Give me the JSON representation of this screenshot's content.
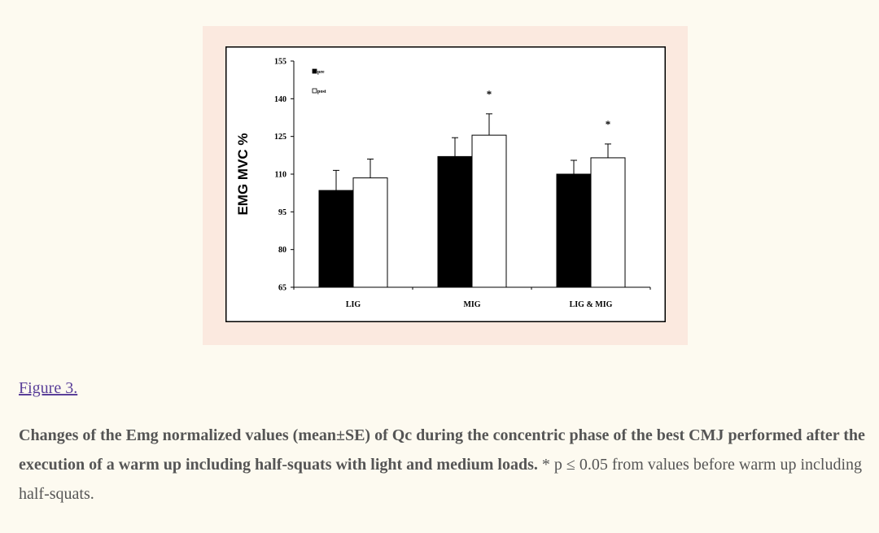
{
  "figure_link": "Figure 3.",
  "caption": {
    "bold": "Changes of the Emg normalized values (mean±SE) of Qc during the concentric phase of the best CMJ performed after the execution of a warm up including half-squats with light and medium loads.",
    "normal": " * p ≤ 0.05 from values before warm up including half-squats."
  },
  "chart_data": {
    "type": "bar",
    "title": "",
    "ylabel": "EMG MVC %",
    "xlabel": "",
    "ylim": [
      65,
      155
    ],
    "yticks": [
      65,
      80,
      95,
      110,
      125,
      140,
      155
    ],
    "categories": [
      "LIG",
      "MIG",
      "LIG & MIG"
    ],
    "series": [
      {
        "name": "pre",
        "color": "#000000",
        "values": [
          103.5,
          117,
          110
        ],
        "errors": [
          8,
          7.5,
          5.5
        ]
      },
      {
        "name": "post",
        "color": "#ffffff",
        "values": [
          108.5,
          125.5,
          116.5
        ],
        "errors": [
          7.5,
          8.5,
          5.5
        ]
      }
    ],
    "annotations": [
      {
        "category": "MIG",
        "text": "*"
      },
      {
        "category": "LIG & MIG",
        "text": "*"
      }
    ],
    "legend": {
      "position": "top-left"
    },
    "grid": false
  }
}
